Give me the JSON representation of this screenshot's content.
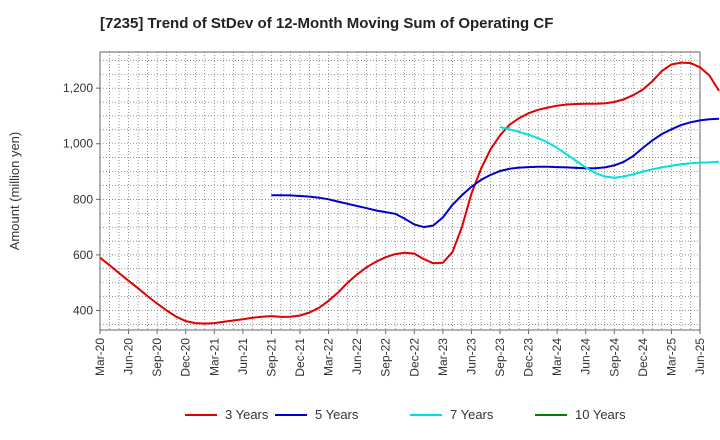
{
  "chart_data": {
    "type": "line",
    "title": "[7235]  Trend of StDev of 12-Month Moving Sum of Operating CF",
    "xlabel": "",
    "ylabel": "Amount (million yen)",
    "ylim": [
      330,
      1330
    ],
    "yticks": [
      400,
      600,
      800,
      1000,
      1200
    ],
    "ytick_labels": [
      "400",
      "600",
      "800",
      "1,000",
      "1,200"
    ],
    "xlim": [
      "2020-03",
      "2025-06"
    ],
    "xtick_labels": [
      "Mar-20",
      "Jun-20",
      "Sep-20",
      "Dec-20",
      "Mar-21",
      "Jun-21",
      "Sep-21",
      "Dec-21",
      "Mar-22",
      "Jun-22",
      "Sep-22",
      "Dec-22",
      "Mar-23",
      "Jun-23",
      "Sep-23",
      "Dec-23",
      "Mar-24",
      "Jun-24",
      "Sep-24",
      "Dec-24",
      "Mar-25",
      "Jun-25"
    ],
    "grid": true,
    "legend_position": "bottom",
    "series": [
      {
        "name": "3 Years",
        "color": "#e00000",
        "points": [
          [
            "2020-03",
            590
          ],
          [
            "2020-04",
            563
          ],
          [
            "2020-05",
            535
          ],
          [
            "2020-06",
            507
          ],
          [
            "2020-07",
            480
          ],
          [
            "2020-08",
            452
          ],
          [
            "2020-09",
            425
          ],
          [
            "2020-10",
            400
          ],
          [
            "2020-11",
            378
          ],
          [
            "2020-12",
            362
          ],
          [
            "2021-01",
            355
          ],
          [
            "2021-02",
            353
          ],
          [
            "2021-03",
            355
          ],
          [
            "2021-04",
            360
          ],
          [
            "2021-05",
            364
          ],
          [
            "2021-06",
            369
          ],
          [
            "2021-07",
            374
          ],
          [
            "2021-08",
            378
          ],
          [
            "2021-09",
            380
          ],
          [
            "2021-10",
            377
          ],
          [
            "2021-11",
            378
          ],
          [
            "2021-12",
            382
          ],
          [
            "2022-01",
            393
          ],
          [
            "2022-02",
            410
          ],
          [
            "2022-03",
            435
          ],
          [
            "2022-04",
            465
          ],
          [
            "2022-05",
            500
          ],
          [
            "2022-06",
            530
          ],
          [
            "2022-07",
            556
          ],
          [
            "2022-08",
            576
          ],
          [
            "2022-09",
            592
          ],
          [
            "2022-10",
            603
          ],
          [
            "2022-11",
            608
          ],
          [
            "2022-12",
            605
          ],
          [
            "2023-01",
            585
          ],
          [
            "2023-02",
            570
          ],
          [
            "2023-03",
            572
          ],
          [
            "2023-04",
            610
          ],
          [
            "2023-05",
            700
          ],
          [
            "2023-06",
            820
          ],
          [
            "2023-07",
            910
          ],
          [
            "2023-08",
            980
          ],
          [
            "2023-09",
            1030
          ],
          [
            "2023-10",
            1068
          ],
          [
            "2023-11",
            1092
          ],
          [
            "2023-12",
            1110
          ],
          [
            "2024-01",
            1122
          ],
          [
            "2024-02",
            1130
          ],
          [
            "2024-03",
            1137
          ],
          [
            "2024-04",
            1141
          ],
          [
            "2024-05",
            1143
          ],
          [
            "2024-06",
            1144
          ],
          [
            "2024-07",
            1144
          ],
          [
            "2024-08",
            1145
          ],
          [
            "2024-09",
            1150
          ],
          [
            "2024-10",
            1160
          ],
          [
            "2024-11",
            1175
          ],
          [
            "2024-12",
            1195
          ],
          [
            "2025-01",
            1225
          ],
          [
            "2025-02",
            1262
          ],
          [
            "2025-03",
            1285
          ],
          [
            "2025-04",
            1292
          ],
          [
            "2025-05",
            1290
          ],
          [
            "2025-06",
            1275
          ],
          [
            "2025-07",
            1245
          ],
          [
            "2025-08",
            1190
          ]
        ]
      },
      {
        "name": "5 Years",
        "color": "#0000cc",
        "points": [
          [
            "2021-09",
            815
          ],
          [
            "2021-10",
            815
          ],
          [
            "2021-11",
            814
          ],
          [
            "2021-12",
            812
          ],
          [
            "2022-01",
            810
          ],
          [
            "2022-02",
            806
          ],
          [
            "2022-03",
            800
          ],
          [
            "2022-04",
            792
          ],
          [
            "2022-05",
            784
          ],
          [
            "2022-06",
            776
          ],
          [
            "2022-07",
            768
          ],
          [
            "2022-08",
            760
          ],
          [
            "2022-09",
            754
          ],
          [
            "2022-10",
            748
          ],
          [
            "2022-11",
            730
          ],
          [
            "2022-12",
            710
          ],
          [
            "2023-01",
            700
          ],
          [
            "2023-02",
            706
          ],
          [
            "2023-03",
            735
          ],
          [
            "2023-04",
            780
          ],
          [
            "2023-05",
            815
          ],
          [
            "2023-06",
            845
          ],
          [
            "2023-07",
            870
          ],
          [
            "2023-08",
            888
          ],
          [
            "2023-09",
            902
          ],
          [
            "2023-10",
            910
          ],
          [
            "2023-11",
            914
          ],
          [
            "2023-12",
            916
          ],
          [
            "2024-01",
            917
          ],
          [
            "2024-02",
            917
          ],
          [
            "2024-03",
            916
          ],
          [
            "2024-04",
            915
          ],
          [
            "2024-05",
            913
          ],
          [
            "2024-06",
            912
          ],
          [
            "2024-07",
            912
          ],
          [
            "2024-08",
            915
          ],
          [
            "2024-09",
            922
          ],
          [
            "2024-10",
            935
          ],
          [
            "2024-11",
            956
          ],
          [
            "2024-12",
            985
          ],
          [
            "2025-01",
            1012
          ],
          [
            "2025-02",
            1035
          ],
          [
            "2025-03",
            1052
          ],
          [
            "2025-04",
            1067
          ],
          [
            "2025-05",
            1077
          ],
          [
            "2025-06",
            1084
          ],
          [
            "2025-07",
            1088
          ],
          [
            "2025-08",
            1090
          ]
        ]
      },
      {
        "name": "7 Years",
        "color": "#00e0e0",
        "points": [
          [
            "2023-09",
            1060
          ],
          [
            "2023-10",
            1052
          ],
          [
            "2023-11",
            1043
          ],
          [
            "2023-12",
            1032
          ],
          [
            "2024-01",
            1020
          ],
          [
            "2024-02",
            1005
          ],
          [
            "2024-03",
            985
          ],
          [
            "2024-04",
            962
          ],
          [
            "2024-05",
            938
          ],
          [
            "2024-06",
            915
          ],
          [
            "2024-07",
            895
          ],
          [
            "2024-08",
            882
          ],
          [
            "2024-09",
            878
          ],
          [
            "2024-10",
            882
          ],
          [
            "2024-11",
            890
          ],
          [
            "2024-12",
            900
          ],
          [
            "2025-01",
            908
          ],
          [
            "2025-02",
            915
          ],
          [
            "2025-03",
            921
          ],
          [
            "2025-04",
            926
          ],
          [
            "2025-05",
            930
          ],
          [
            "2025-06",
            932
          ],
          [
            "2025-07",
            933
          ],
          [
            "2025-08",
            935
          ]
        ]
      },
      {
        "name": "10 Years",
        "color": "#008000",
        "points": []
      }
    ]
  }
}
